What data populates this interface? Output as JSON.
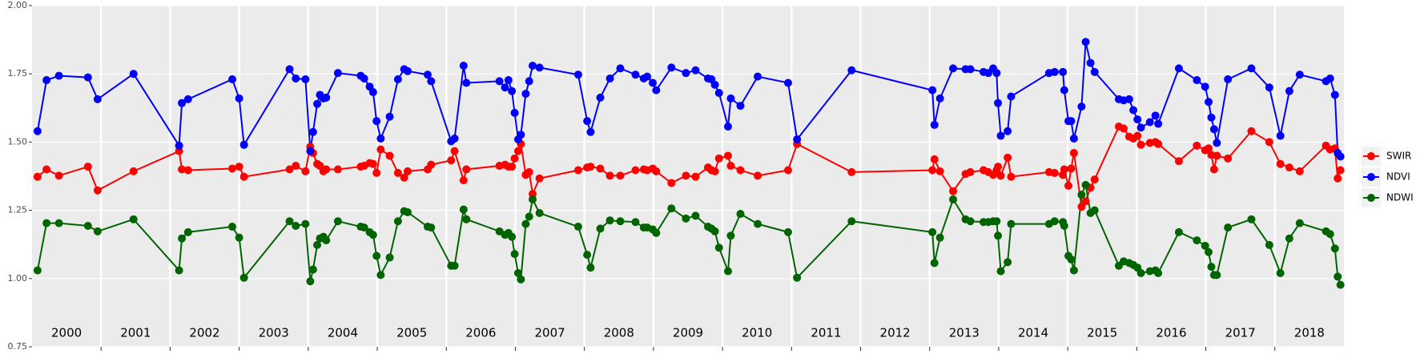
{
  "chart_data": {
    "type": "line",
    "x": [
      2000.08,
      2000.21,
      2000.39,
      2000.81,
      2000.95,
      2001.47,
      2002.13,
      2002.17,
      2002.26,
      2002.9,
      2003.0,
      2003.07,
      2003.73,
      2003.82,
      2003.96,
      2004.03,
      2004.07,
      2004.13,
      2004.17,
      2004.22,
      2004.26,
      2004.43,
      2004.76,
      2004.81,
      2004.89,
      2004.94,
      2004.99,
      2005.05,
      2005.18,
      2005.3,
      2005.39,
      2005.44,
      2005.73,
      2005.78,
      2006.07,
      2006.12,
      2006.25,
      2006.29,
      2006.77,
      2006.85,
      2006.9,
      2006.95,
      2006.99,
      2007.04,
      2007.08,
      2007.15,
      2007.2,
      2007.25,
      2007.35,
      2007.91,
      2008.04,
      2008.09,
      2008.23,
      2008.37,
      2008.52,
      2008.74,
      2008.86,
      2008.91,
      2008.99,
      2009.04,
      2009.26,
      2009.47,
      2009.61,
      2009.79,
      2009.84,
      2009.89,
      2009.95,
      2010.08,
      2010.12,
      2010.26,
      2010.51,
      2010.95,
      2011.08,
      2011.87,
      2013.04,
      2013.07,
      2013.15,
      2013.34,
      2013.52,
      2013.59,
      2013.78,
      2013.85,
      2013.92,
      2013.97,
      2013.99,
      2014.03,
      2014.13,
      2014.18,
      2014.73,
      2014.81,
      2014.93,
      2014.95,
      2015.01,
      2015.05,
      2015.09,
      2015.2,
      2015.26,
      2015.33,
      2015.39,
      2015.74,
      2015.81,
      2015.89,
      2015.95,
      2016.01,
      2016.06,
      2016.19,
      2016.27,
      2016.31,
      2016.61,
      2016.87,
      2016.99,
      2017.04,
      2017.08,
      2017.12,
      2017.16,
      2017.32,
      2017.66,
      2017.92,
      2018.08,
      2018.21,
      2018.36,
      2018.74,
      2018.8,
      2018.87,
      2018.91,
      2018.95
    ],
    "series": [
      {
        "name": "SWIR",
        "color": "#ff0000",
        "values": [
          1.373,
          1.4,
          1.377,
          1.41,
          1.323,
          1.393,
          1.467,
          1.4,
          1.397,
          1.403,
          1.41,
          1.373,
          1.4,
          1.413,
          1.393,
          1.483,
          1.46,
          1.42,
          1.413,
          1.393,
          1.4,
          1.4,
          1.41,
          1.413,
          1.423,
          1.42,
          1.387,
          1.473,
          1.45,
          1.387,
          1.37,
          1.393,
          1.4,
          1.417,
          1.433,
          1.467,
          1.36,
          1.4,
          1.413,
          1.417,
          1.41,
          1.41,
          1.44,
          1.467,
          1.493,
          1.38,
          1.39,
          1.31,
          1.367,
          1.397,
          1.407,
          1.41,
          1.403,
          1.377,
          1.377,
          1.397,
          1.4,
          1.397,
          1.403,
          1.393,
          1.35,
          1.377,
          1.373,
          1.407,
          1.397,
          1.393,
          1.44,
          1.45,
          1.413,
          1.397,
          1.377,
          1.397,
          1.493,
          1.39,
          1.397,
          1.437,
          1.393,
          1.32,
          1.383,
          1.39,
          1.397,
          1.39,
          1.38,
          1.397,
          1.41,
          1.377,
          1.443,
          1.373,
          1.39,
          1.387,
          1.38,
          1.4,
          1.34,
          1.403,
          1.46,
          1.263,
          1.283,
          1.333,
          1.363,
          1.557,
          1.55,
          1.52,
          1.513,
          1.523,
          1.49,
          1.497,
          1.5,
          1.493,
          1.43,
          1.487,
          1.47,
          1.477,
          1.453,
          1.4,
          1.45,
          1.44,
          1.54,
          1.5,
          1.42,
          1.407,
          1.393,
          1.487,
          1.473,
          1.477,
          1.367,
          1.397
        ]
      },
      {
        "name": "NDVI",
        "color": "#0000ff",
        "values": [
          1.54,
          1.727,
          1.743,
          1.737,
          1.657,
          1.75,
          1.487,
          1.643,
          1.657,
          1.73,
          1.66,
          1.49,
          1.767,
          1.733,
          1.73,
          1.467,
          1.537,
          1.64,
          1.673,
          1.66,
          1.663,
          1.753,
          1.743,
          1.733,
          1.703,
          1.683,
          1.577,
          1.513,
          1.593,
          1.73,
          1.767,
          1.76,
          1.747,
          1.723,
          1.503,
          1.513,
          1.78,
          1.717,
          1.723,
          1.7,
          1.727,
          1.687,
          1.607,
          1.51,
          1.527,
          1.677,
          1.723,
          1.78,
          1.773,
          1.747,
          1.577,
          1.537,
          1.663,
          1.733,
          1.77,
          1.747,
          1.733,
          1.74,
          1.717,
          1.69,
          1.773,
          1.753,
          1.763,
          1.733,
          1.73,
          1.71,
          1.68,
          1.557,
          1.66,
          1.633,
          1.74,
          1.717,
          1.51,
          1.763,
          1.69,
          1.563,
          1.66,
          1.77,
          1.767,
          1.767,
          1.757,
          1.753,
          1.77,
          1.753,
          1.643,
          1.523,
          1.54,
          1.667,
          1.753,
          1.757,
          1.757,
          1.69,
          1.577,
          1.577,
          1.513,
          1.63,
          1.867,
          1.79,
          1.757,
          1.657,
          1.653,
          1.657,
          1.617,
          1.583,
          1.553,
          1.573,
          1.597,
          1.567,
          1.77,
          1.727,
          1.703,
          1.647,
          1.59,
          1.547,
          1.497,
          1.73,
          1.77,
          1.7,
          1.523,
          1.687,
          1.747,
          1.723,
          1.733,
          1.673,
          1.46,
          1.447
        ]
      },
      {
        "name": "NDWI",
        "color": "#006400",
        "values": [
          1.03,
          1.203,
          1.203,
          1.193,
          1.173,
          1.217,
          1.03,
          1.147,
          1.17,
          1.19,
          1.15,
          1.003,
          1.21,
          1.193,
          1.2,
          0.99,
          1.033,
          1.123,
          1.147,
          1.153,
          1.14,
          1.21,
          1.19,
          1.187,
          1.17,
          1.16,
          1.083,
          1.013,
          1.077,
          1.21,
          1.247,
          1.243,
          1.19,
          1.187,
          1.047,
          1.047,
          1.253,
          1.217,
          1.173,
          1.16,
          1.167,
          1.153,
          1.09,
          1.02,
          0.997,
          1.2,
          1.227,
          1.29,
          1.24,
          1.19,
          1.087,
          1.04,
          1.183,
          1.213,
          1.21,
          1.207,
          1.187,
          1.187,
          1.18,
          1.167,
          1.257,
          1.22,
          1.23,
          1.19,
          1.183,
          1.173,
          1.113,
          1.027,
          1.157,
          1.237,
          1.2,
          1.17,
          1.003,
          1.21,
          1.17,
          1.057,
          1.15,
          1.29,
          1.217,
          1.21,
          1.207,
          1.207,
          1.21,
          1.21,
          1.157,
          1.027,
          1.06,
          1.2,
          1.2,
          1.21,
          1.207,
          1.193,
          1.083,
          1.07,
          1.03,
          1.307,
          1.343,
          1.24,
          1.25,
          1.047,
          1.063,
          1.057,
          1.05,
          1.04,
          1.02,
          1.027,
          1.03,
          1.02,
          1.17,
          1.14,
          1.12,
          1.097,
          1.043,
          1.013,
          1.013,
          1.187,
          1.217,
          1.123,
          1.02,
          1.147,
          1.203,
          1.173,
          1.163,
          1.11,
          1.007,
          0.977
        ]
      }
    ],
    "xlim": [
      2000,
      2019
    ],
    "xticks": [
      {
        "value": 2000.5,
        "label": "2000"
      },
      {
        "value": 2001.5,
        "label": "2001"
      },
      {
        "value": 2002.5,
        "label": "2002"
      },
      {
        "value": 2003.5,
        "label": "2003"
      },
      {
        "value": 2004.5,
        "label": "2004"
      },
      {
        "value": 2005.5,
        "label": "2005"
      },
      {
        "value": 2006.5,
        "label": "2006"
      },
      {
        "value": 2007.5,
        "label": "2007"
      },
      {
        "value": 2008.5,
        "label": "2008"
      },
      {
        "value": 2009.5,
        "label": "2009"
      },
      {
        "value": 2010.5,
        "label": "2010"
      },
      {
        "value": 2011.5,
        "label": "2011"
      },
      {
        "value": 2012.5,
        "label": "2012"
      },
      {
        "value": 2013.5,
        "label": "2013"
      },
      {
        "value": 2014.5,
        "label": "2014"
      },
      {
        "value": 2015.5,
        "label": "2015"
      },
      {
        "value": 2016.5,
        "label": "2016"
      },
      {
        "value": 2017.5,
        "label": "2017"
      },
      {
        "value": 2018.5,
        "label": "2018"
      }
    ],
    "vlines": [
      2001,
      2002,
      2003,
      2004,
      2005,
      2006,
      2007,
      2008,
      2009,
      2010,
      2011,
      2012,
      2013,
      2014,
      2015,
      2016,
      2017,
      2018
    ],
    "ylim": [
      0.75,
      2.0
    ],
    "yticks": [
      0.75,
      {
        "value": 1,
        "label": "1.00"
      },
      1.25,
      {
        "value": 1.5,
        "label": "1.50"
      },
      1.75,
      {
        "value": 2,
        "label": "2.00"
      }
    ],
    "grid": true,
    "legend": "right"
  }
}
